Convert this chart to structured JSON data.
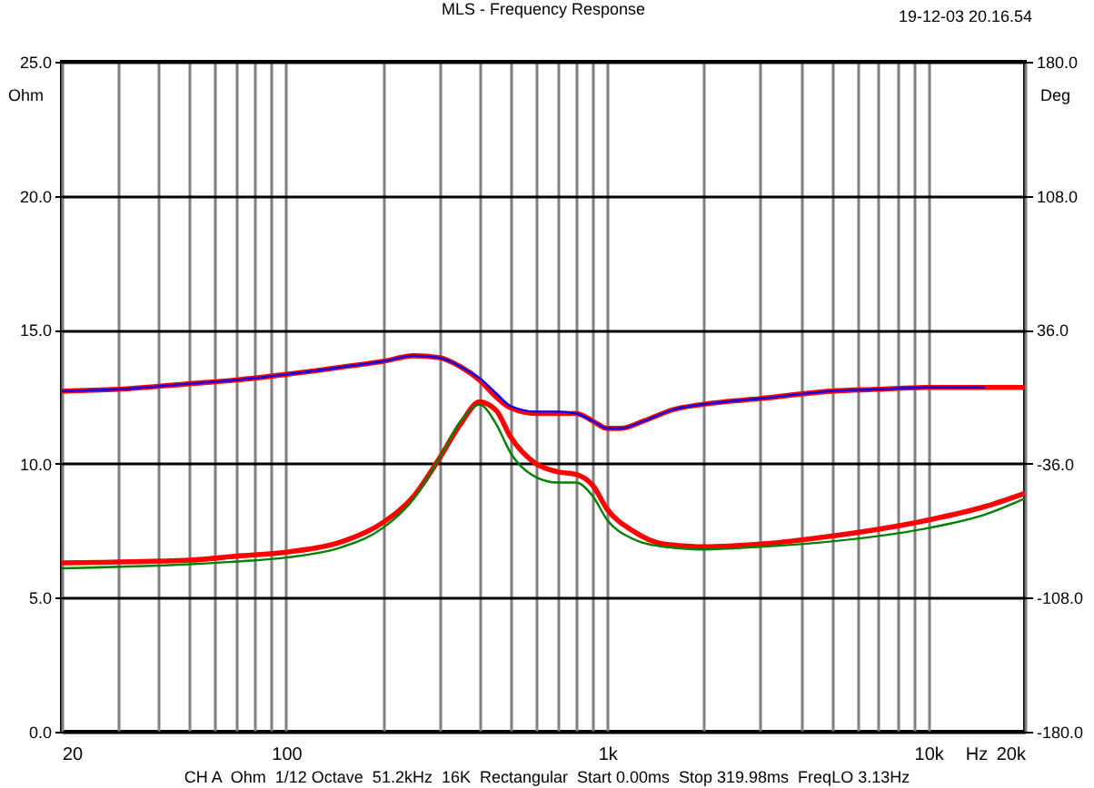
{
  "chart_data": {
    "type": "line",
    "title": "MLS - Frequency Response",
    "xlabel": "Hz",
    "ylabel": "Ohm",
    "y2label": "Deg",
    "annotations": [
      "19-12-03 20.16.54",
      "CH A  Ohm  1/12 Octave  51.2kHz  16K  Rectangular  Start 0.00ms  Stop 319.98ms  FreqLO 3.13Hz"
    ],
    "log": "x",
    "grid": true,
    "marker": "none",
    "line_style": "solid",
    "xlim": [
      20,
      20000
    ],
    "xticks": [
      {
        "value": 20,
        "label": "20"
      },
      {
        "value": 30,
        "label": null
      },
      {
        "value": 40,
        "label": null
      },
      {
        "value": 50,
        "label": null
      },
      {
        "value": 60,
        "label": null
      },
      {
        "value": 70,
        "label": null
      },
      {
        "value": 80,
        "label": null
      },
      {
        "value": 90,
        "label": null
      },
      {
        "value": 100,
        "label": "100"
      },
      {
        "value": 200,
        "label": null
      },
      {
        "value": 300,
        "label": null
      },
      {
        "value": 400,
        "label": null
      },
      {
        "value": 500,
        "label": null
      },
      {
        "value": 600,
        "label": null
      },
      {
        "value": 700,
        "label": null
      },
      {
        "value": 800,
        "label": null
      },
      {
        "value": 900,
        "label": null
      },
      {
        "value": 1000,
        "label": "1k"
      },
      {
        "value": 2000,
        "label": null
      },
      {
        "value": 3000,
        "label": null
      },
      {
        "value": 4000,
        "label": null
      },
      {
        "value": 5000,
        "label": null
      },
      {
        "value": 6000,
        "label": null
      },
      {
        "value": 7000,
        "label": null
      },
      {
        "value": 8000,
        "label": null
      },
      {
        "value": 9000,
        "label": null
      },
      {
        "value": 10000,
        "label": "10k"
      },
      {
        "value": 20000,
        "label": "20k"
      }
    ],
    "ylim": [
      0,
      25
    ],
    "yticks": [
      {
        "value": 0,
        "label": "0.0"
      },
      {
        "value": 5,
        "label": "5.0"
      },
      {
        "value": 10,
        "label": "10.0"
      },
      {
        "value": 15,
        "label": "15.0"
      },
      {
        "value": 20,
        "label": "20.0"
      },
      {
        "value": 25,
        "label": "25.0"
      }
    ],
    "y2lim": [
      -180,
      180
    ],
    "y2ticks": [
      {
        "value": -180,
        "label": "-180.0"
      },
      {
        "value": -108,
        "label": "-108.0"
      },
      {
        "value": -36,
        "label": "-36.0"
      },
      {
        "value": 36,
        "label": "36.0"
      },
      {
        "value": 108,
        "label": "108.0"
      },
      {
        "value": 180,
        "label": "180.0"
      }
    ],
    "series": [
      {
        "color": "#ff0000",
        "x": [
          20,
          50,
          70,
          100,
          150,
          200,
          250,
          300,
          350,
          400,
          450,
          500,
          600,
          700,
          800,
          900,
          1000,
          1200,
          1500,
          2000,
          3000,
          5000,
          10000,
          15000,
          20000
        ],
        "values": [
          6.3,
          6.4,
          6.55,
          6.7,
          7.1,
          7.8,
          8.8,
          10.2,
          11.5,
          12.3,
          12.0,
          11.0,
          10.0,
          9.7,
          9.6,
          9.2,
          8.3,
          7.5,
          7.0,
          6.9,
          7.0,
          7.3,
          7.9,
          8.4,
          8.9
        ]
      },
      {
        "color": "#008000",
        "x": [
          20,
          50,
          70,
          100,
          150,
          200,
          250,
          300,
          350,
          400,
          450,
          500,
          600,
          700,
          800,
          900,
          1000,
          1200,
          1500,
          2000,
          3000,
          5000,
          10000,
          15000,
          20000
        ],
        "values": [
          6.1,
          6.25,
          6.35,
          6.5,
          6.9,
          7.6,
          8.7,
          10.2,
          11.6,
          12.2,
          11.5,
          10.4,
          9.5,
          9.3,
          9.3,
          8.8,
          7.9,
          7.2,
          6.9,
          6.8,
          6.9,
          7.1,
          7.6,
          8.1,
          8.7
        ]
      },
      {
        "color": "#ff0000",
        "axis": "y2",
        "x": [
          20,
          30,
          50,
          70,
          100,
          150,
          200,
          250,
          300,
          350,
          400,
          450,
          500,
          600,
          700,
          800,
          900,
          1000,
          1100,
          1300,
          1600,
          2000,
          3000,
          5000,
          7000,
          10000,
          15000,
          20000
        ],
        "values": [
          3,
          4,
          7,
          9,
          12,
          16,
          19,
          22,
          21,
          16,
          9,
          0,
          -6,
          -9,
          -9,
          -9,
          -13,
          -17,
          -17,
          -13,
          -7,
          -4,
          -1,
          3,
          4,
          5,
          5,
          5
        ]
      },
      {
        "color": "#0000ff",
        "axis": "y2",
        "x": [
          20,
          30,
          50,
          70,
          100,
          150,
          200,
          250,
          300,
          350,
          400,
          450,
          500,
          600,
          700,
          800,
          900,
          1000,
          1100,
          1300,
          1600,
          2000,
          3000,
          5000,
          7000,
          10000,
          15000
        ],
        "values": [
          3,
          4,
          7,
          9,
          12,
          16,
          19,
          22,
          21,
          16,
          10,
          2,
          -5,
          -8,
          -8,
          -9,
          -13,
          -17,
          -17,
          -13,
          -7,
          -4,
          -1,
          3,
          4,
          5,
          5
        ]
      }
    ]
  }
}
